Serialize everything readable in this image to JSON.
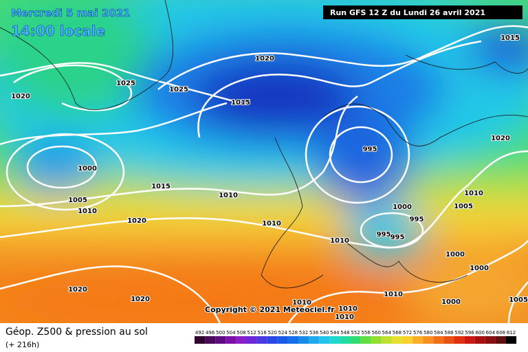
{
  "header": {
    "date": "Mercredi 5 mai 2021",
    "time": "14:00 locale",
    "run": "Run GFS 12 Z du Lundi 26 avril 2021"
  },
  "copyright": "Copyright © 2021 Meteociel.fr",
  "footer": {
    "title": "Géop. Z500 & pression au sol",
    "lead": "(+ 216h)"
  },
  "legend": {
    "values": [
      492,
      496,
      500,
      504,
      508,
      512,
      516,
      520,
      524,
      528,
      532,
      536,
      540,
      544,
      548,
      552,
      556,
      560,
      564,
      568,
      572,
      576,
      580,
      584,
      588,
      592,
      596,
      600,
      604,
      608,
      612
    ]
  },
  "isobar_labels": [
    "1015",
    "1020",
    "1025",
    "1025",
    "1020",
    "1015",
    "1020",
    "995",
    "1000",
    "1015",
    "1010",
    "1010",
    "1005",
    "1010",
    "1005",
    "1000",
    "995",
    "1020",
    "1010",
    "995",
    "995",
    "1010",
    "1000",
    "1000",
    "1010",
    "1020",
    "1020",
    "1010",
    "1000",
    "1005",
    "1010",
    "1010"
  ]
}
